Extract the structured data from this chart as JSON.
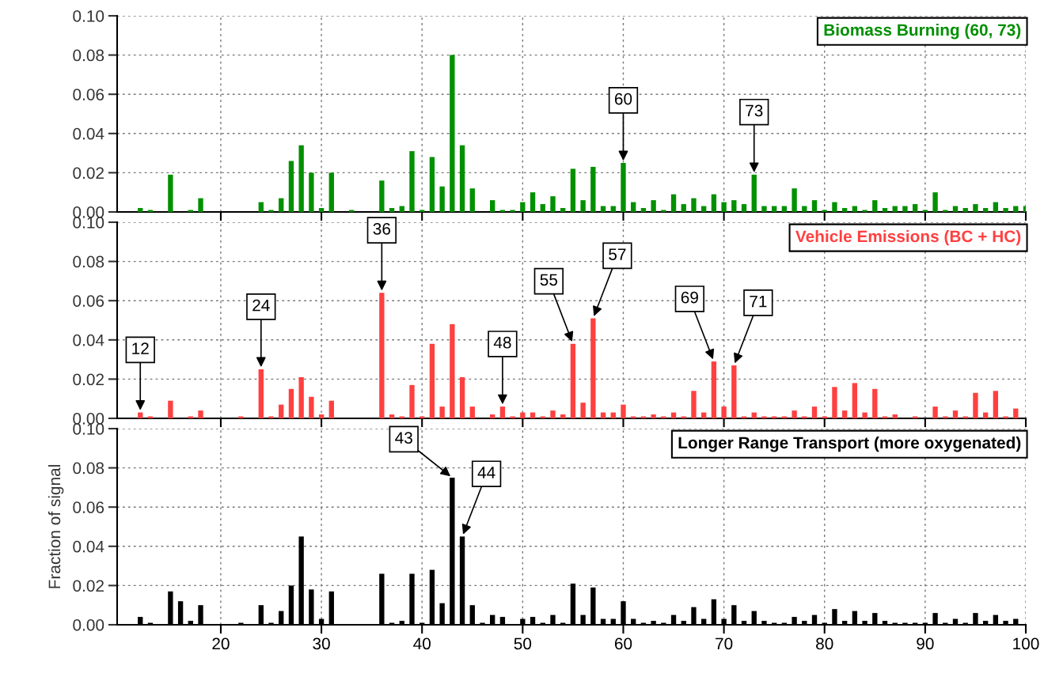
{
  "chart_data": [
    {
      "type": "bar",
      "title": "Biomass Burning (60, 73)",
      "color": "#009000",
      "x": [
        12,
        13,
        14,
        15,
        16,
        17,
        18,
        19,
        20,
        21,
        22,
        23,
        24,
        25,
        26,
        27,
        28,
        29,
        30,
        31,
        32,
        33,
        34,
        35,
        36,
        37,
        38,
        39,
        40,
        41,
        42,
        43,
        44,
        45,
        46,
        47,
        48,
        49,
        50,
        51,
        52,
        53,
        54,
        55,
        56,
        57,
        58,
        59,
        60,
        61,
        62,
        63,
        64,
        65,
        66,
        67,
        68,
        69,
        70,
        71,
        72,
        73,
        74,
        75,
        76,
        77,
        78,
        79,
        80,
        81,
        82,
        83,
        84,
        85,
        86,
        87,
        88,
        89,
        90,
        91,
        92,
        93,
        94,
        95,
        96,
        97,
        98,
        99,
        100
      ],
      "values": [
        0.002,
        0.001,
        0,
        0.019,
        0,
        0.001,
        0.007,
        0,
        0,
        0,
        0,
        0,
        0.005,
        0.001,
        0.007,
        0.026,
        0.034,
        0.02,
        0.002,
        0.02,
        0,
        0.001,
        0,
        0,
        0.016,
        0.002,
        0.003,
        0.031,
        0.001,
        0.028,
        0.013,
        0.08,
        0.034,
        0.012,
        0,
        0.006,
        0.001,
        0.001,
        0.005,
        0.01,
        0.004,
        0.008,
        0.002,
        0.022,
        0.006,
        0.023,
        0.003,
        0.003,
        0.025,
        0.005,
        0.002,
        0.006,
        0.001,
        0.009,
        0.004,
        0.007,
        0.003,
        0.009,
        0.005,
        0.006,
        0.004,
        0.019,
        0.003,
        0.003,
        0.003,
        0.012,
        0.003,
        0.006,
        0.001,
        0.005,
        0.002,
        0.003,
        0.001,
        0.006,
        0.002,
        0.003,
        0.003,
        0.004,
        0.001,
        0.01,
        0.001,
        0.003,
        0.002,
        0.004,
        0.002,
        0.005,
        0.002,
        0.003,
        0.003
      ],
      "xlim": [
        9.7,
        100
      ],
      "xticks": [
        20,
        30,
        40,
        50,
        60,
        70,
        80,
        90,
        100
      ],
      "ylim": [
        0,
        0.1
      ],
      "yticks": [
        {
          "value": 0,
          "label": "0.00"
        },
        {
          "value": 0.02,
          "label": "0.02"
        },
        {
          "value": 0.04,
          "label": "0.04"
        },
        {
          "value": 0.06,
          "label": "0.06"
        },
        {
          "value": 0.08,
          "label": "0.08"
        },
        {
          "value": 0.1,
          "label": "0.10"
        }
      ],
      "tick_labels": "y",
      "grid": true,
      "annotations": [
        {
          "text": "60",
          "x": 60,
          "y": 0.025
        },
        {
          "text": "73",
          "x": 73,
          "y": 0.019
        }
      ]
    },
    {
      "type": "bar",
      "title": "Vehicle Emissions (BC + HC)",
      "color": "#ff4040",
      "x": [
        12,
        13,
        14,
        15,
        16,
        17,
        18,
        19,
        20,
        21,
        22,
        23,
        24,
        25,
        26,
        27,
        28,
        29,
        30,
        31,
        32,
        33,
        34,
        35,
        36,
        37,
        38,
        39,
        40,
        41,
        42,
        43,
        44,
        45,
        46,
        47,
        48,
        49,
        50,
        51,
        52,
        53,
        54,
        55,
        56,
        57,
        58,
        59,
        60,
        61,
        62,
        63,
        64,
        65,
        66,
        67,
        68,
        69,
        70,
        71,
        72,
        73,
        74,
        75,
        76,
        77,
        78,
        79,
        80,
        81,
        82,
        83,
        84,
        85,
        86,
        87,
        88,
        89,
        90,
        91,
        92,
        93,
        94,
        95,
        96,
        97,
        98,
        99,
        100
      ],
      "values": [
        0.003,
        0.001,
        0,
        0.009,
        0,
        0.001,
        0.004,
        0,
        0,
        0,
        0.001,
        0,
        0.025,
        0.001,
        0.007,
        0.015,
        0.021,
        0.011,
        0.002,
        0.009,
        0,
        0,
        0,
        0,
        0.064,
        0.002,
        0.001,
        0.017,
        0.001,
        0.038,
        0.006,
        0.048,
        0.021,
        0.006,
        0,
        0.002,
        0.006,
        0.001,
        0.003,
        0.003,
        0.001,
        0.004,
        0.002,
        0.038,
        0.008,
        0.051,
        0.003,
        0.003,
        0.007,
        0.001,
        0.001,
        0.002,
        0.001,
        0.003,
        0.001,
        0.014,
        0.003,
        0.029,
        0.006,
        0.027,
        0.001,
        0.003,
        0.001,
        0.001,
        0.001,
        0.004,
        0.001,
        0.006,
        0.001,
        0.016,
        0.004,
        0.018,
        0.003,
        0.015,
        0.001,
        0.002,
        0,
        0.001,
        0,
        0.006,
        0.001,
        0.004,
        0.001,
        0.013,
        0.003,
        0.014,
        0.001,
        0.005,
        0
      ],
      "xlim": [
        9.7,
        100
      ],
      "xticks": [
        20,
        30,
        40,
        50,
        60,
        70,
        80,
        90,
        100
      ],
      "ylim": [
        0,
        0.1
      ],
      "yticks": [
        {
          "value": 0,
          "label": "0.00"
        },
        {
          "value": 0.02,
          "label": "0.02"
        },
        {
          "value": 0.04,
          "label": "0.04"
        },
        {
          "value": 0.06,
          "label": "0.06"
        },
        {
          "value": 0.08,
          "label": "0.08"
        },
        {
          "value": 0.1,
          "label": "0.10"
        }
      ],
      "tick_labels": "y",
      "grid": true,
      "annotations": [
        {
          "text": "12",
          "x": 12,
          "y": 0.003
        },
        {
          "text": "24",
          "x": 24,
          "y": 0.025
        },
        {
          "text": "36",
          "x": 36,
          "y": 0.064
        },
        {
          "text": "48",
          "x": 48,
          "y": 0.006
        },
        {
          "text": "55",
          "x": 55,
          "y": 0.038
        },
        {
          "text": "57",
          "x": 57,
          "y": 0.051
        },
        {
          "text": "69",
          "x": 69,
          "y": 0.029
        },
        {
          "text": "71",
          "x": 71,
          "y": 0.027
        }
      ]
    },
    {
      "type": "bar",
      "title": "Longer Range Transport (more oxygenated)",
      "color": "#000000",
      "ylabel": "Fraction of signal",
      "x": [
        12,
        13,
        14,
        15,
        16,
        17,
        18,
        19,
        20,
        21,
        22,
        23,
        24,
        25,
        26,
        27,
        28,
        29,
        30,
        31,
        32,
        33,
        34,
        35,
        36,
        37,
        38,
        39,
        40,
        41,
        42,
        43,
        44,
        45,
        46,
        47,
        48,
        49,
        50,
        51,
        52,
        53,
        54,
        55,
        56,
        57,
        58,
        59,
        60,
        61,
        62,
        63,
        64,
        65,
        66,
        67,
        68,
        69,
        70,
        71,
        72,
        73,
        74,
        75,
        76,
        77,
        78,
        79,
        80,
        81,
        82,
        83,
        84,
        85,
        86,
        87,
        88,
        89,
        90,
        91,
        92,
        93,
        94,
        95,
        96,
        97,
        98,
        99,
        100
      ],
      "values": [
        0.004,
        0.001,
        0,
        0.017,
        0.012,
        0.002,
        0.01,
        0,
        0,
        0,
        0.001,
        0,
        0.01,
        0.001,
        0.007,
        0.02,
        0.045,
        0.018,
        0.003,
        0.017,
        0,
        0,
        0,
        0,
        0.026,
        0.001,
        0.002,
        0.026,
        0.001,
        0.028,
        0.011,
        0.075,
        0.045,
        0.01,
        0.001,
        0.005,
        0.004,
        0,
        0.003,
        0.004,
        0.001,
        0.005,
        0.001,
        0.021,
        0.005,
        0.019,
        0.003,
        0.003,
        0.012,
        0.003,
        0.001,
        0.002,
        0.001,
        0.005,
        0.002,
        0.009,
        0.003,
        0.013,
        0.003,
        0.01,
        0.002,
        0.007,
        0.002,
        0.001,
        0.001,
        0.004,
        0.002,
        0.005,
        0.001,
        0.008,
        0.002,
        0.007,
        0.002,
        0.006,
        0.002,
        0.001,
        0.001,
        0.001,
        0.001,
        0.006,
        0.001,
        0.003,
        0.001,
        0.006,
        0.002,
        0.005,
        0.002,
        0.003,
        0
      ],
      "xlim": [
        9.7,
        100
      ],
      "xticks": [
        20,
        30,
        40,
        50,
        60,
        70,
        80,
        90,
        100
      ],
      "ylim": [
        0,
        0.1
      ],
      "yticks": [
        {
          "value": 0,
          "label": "0.00"
        },
        {
          "value": 0.02,
          "label": "0.02"
        },
        {
          "value": 0.04,
          "label": "0.04"
        },
        {
          "value": 0.06,
          "label": "0.06"
        },
        {
          "value": 0.08,
          "label": "0.08"
        },
        {
          "value": 0.1,
          "label": "0.10"
        }
      ],
      "grid": true,
      "annotations": [
        {
          "text": "43",
          "x": 43,
          "y": 0.075
        },
        {
          "text": "44",
          "x": 44,
          "y": 0.045
        }
      ]
    }
  ]
}
